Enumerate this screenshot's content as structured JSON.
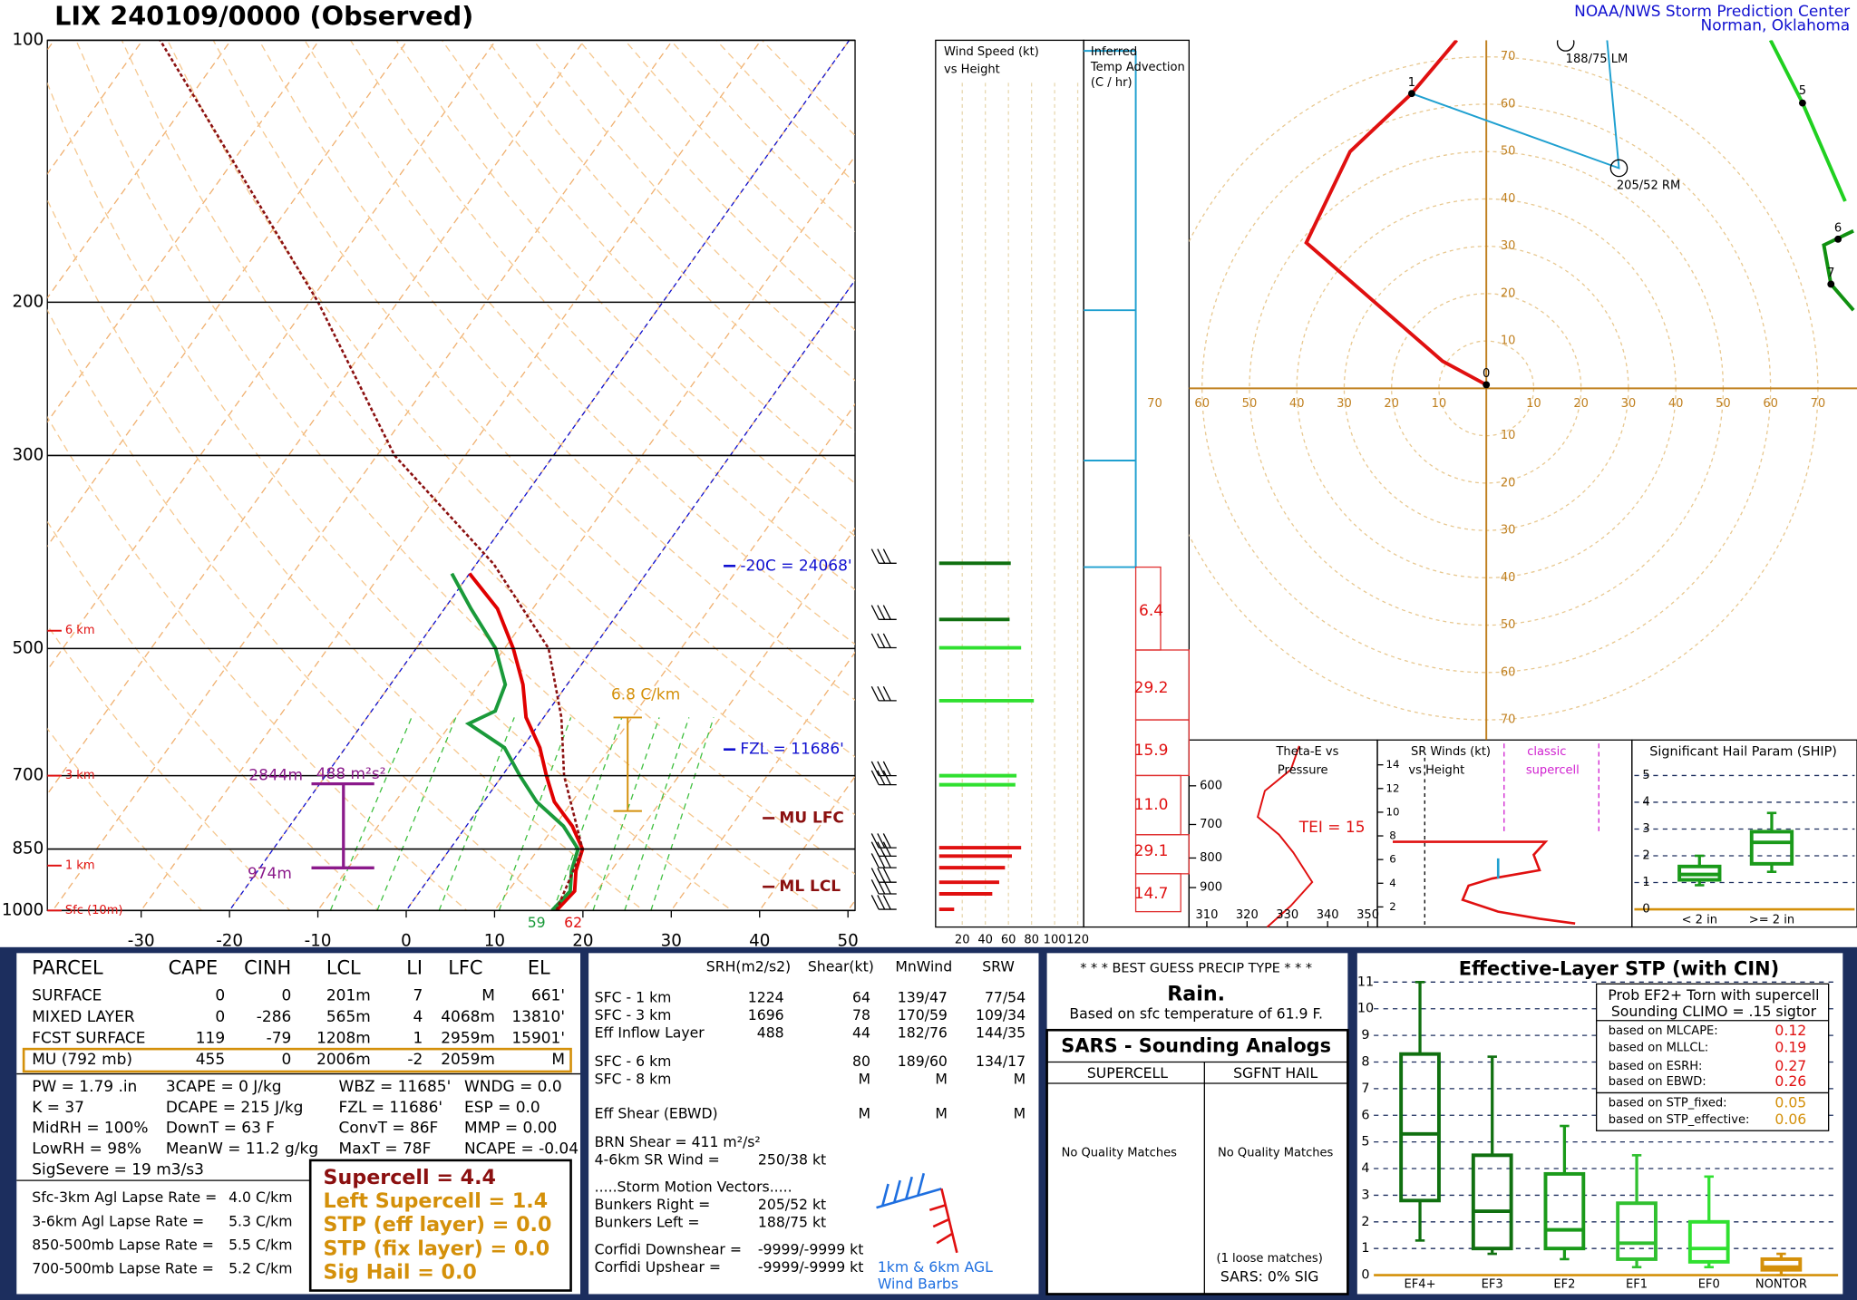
{
  "header": {
    "title": "LIX  240109/0000  (Observed)",
    "credit": [
      "NOAA/NWS Storm Prediction Center",
      "Norman, Oklahoma"
    ]
  },
  "skewt": {
    "pressure_ticks": [
      100,
      200,
      300,
      500,
      700,
      850,
      1000
    ],
    "temp_ticks": [
      -30,
      -20,
      -10,
      0,
      10,
      20,
      30,
      40,
      50
    ],
    "height_markers": [
      {
        "label": "6 km",
        "pressure": 477
      },
      {
        "label": "3 km",
        "pressure": 700
      },
      {
        "label": "1 km",
        "pressure": 888
      },
      {
        "label": "Sfc (10m)",
        "pressure": 1000
      }
    ],
    "levels": {
      "m20c": "-20C = 24068'",
      "fzl": "FZL = 11686'",
      "mu_lfc": "MU LFC",
      "ml_lcl": "ML LCL"
    },
    "lapse_rate": "6.8 C/km",
    "effective_inflow": {
      "top": "2844m",
      "bottom": "974m",
      "srh": "488 m²s²"
    },
    "surface": {
      "dewpoint": "59",
      "temperature": "62"
    },
    "traces": [
      {
        "name": "temperature",
        "color": "#e00000",
        "pressure": [
          1000,
          950,
          900,
          850,
          800,
          750,
          700,
          650,
          600,
          550,
          500,
          450,
          410
        ],
        "values": [
          17,
          17.5,
          16,
          15,
          12,
          8,
          5,
          2,
          -2,
          -5,
          -9,
          -14,
          -20
        ]
      },
      {
        "name": "dewpoint",
        "color": "#1a9a3a",
        "pressure": [
          1000,
          950,
          900,
          850,
          800,
          750,
          700,
          650,
          610,
          590,
          550,
          500,
          450,
          410
        ],
        "values": [
          16.5,
          17,
          15.5,
          14.5,
          11,
          6,
          2,
          -2,
          -8,
          -6,
          -7,
          -11,
          -17,
          -22
        ]
      },
      {
        "name": "parcel",
        "color": "#8b1010",
        "pressure": [
          1000,
          850,
          700,
          600,
          500,
          400,
          300,
          200,
          100
        ],
        "values": [
          17,
          15,
          7,
          2,
          -5,
          -18,
          -38,
          -59,
          -98
        ]
      }
    ]
  },
  "wind_profile": {
    "title": [
      "Wind Speed (kt)",
      "vs Height"
    ],
    "speed_ticks": [
      20,
      40,
      60,
      80,
      100,
      120
    ],
    "pressure": [
      399,
      463,
      499,
      574,
      700,
      717,
      847,
      866,
      893,
      928,
      957,
      997
    ],
    "speed": [
      62,
      61,
      71,
      82,
      67,
      66,
      71,
      63,
      57,
      52,
      46,
      13
    ]
  },
  "temp_advection": {
    "title": [
      "Inferred",
      "Temp Advection",
      "(C / hr)"
    ],
    "values": [
      "6.4",
      "29.2",
      "15.9",
      "11.0",
      "29.1",
      "14.7"
    ]
  },
  "hodograph": {
    "ticks": [
      10,
      20,
      30,
      40,
      50,
      60,
      70
    ],
    "points": [
      "0",
      "1",
      "5",
      "6",
      "7"
    ],
    "left_mover": "188/75 LM",
    "right_mover": "205/52 RM"
  },
  "theta_e": {
    "title": [
      "Theta-E vs",
      "Pressure"
    ],
    "pressure_ticks": [
      600,
      700,
      800,
      900
    ],
    "theta_ticks": [
      310,
      320,
      330,
      340,
      350
    ],
    "tei": "TEI = 15"
  },
  "sr_winds": {
    "title": [
      "SR Winds (kt)",
      "vs Height"
    ],
    "height_ticks": [
      2,
      4,
      6,
      8,
      10,
      12,
      14
    ],
    "legend": [
      "classic",
      "supercell"
    ]
  },
  "ship": {
    "title": "Significant Hail Param (SHIP)",
    "ticks": [
      0,
      1,
      2,
      3,
      4,
      5
    ],
    "boxes": [
      {
        "name": "< 2 in",
        "stats": [
          0.9,
          1.1,
          1.3,
          1.6,
          2.0
        ]
      },
      {
        "name": ">= 2 in",
        "stats": [
          1.4,
          1.7,
          2.5,
          2.9,
          3.6
        ]
      }
    ]
  },
  "parcel_table": {
    "header": [
      "PARCEL",
      "CAPE",
      "CINH",
      "LCL",
      "LI",
      "LFC",
      "EL"
    ],
    "rows": [
      [
        "SURFACE",
        "0",
        "0",
        "201m",
        "7",
        "M",
        "661'"
      ],
      [
        "MIXED LAYER",
        "0",
        "-286",
        "565m",
        "4",
        "4068m",
        "13810'"
      ],
      [
        "FCST SURFACE",
        "119",
        "-79",
        "1208m",
        "1",
        "2959m",
        "15901'"
      ],
      [
        "MU   (792 mb)",
        "455",
        "0",
        "2006m",
        "-2",
        "2059m",
        "M"
      ]
    ]
  },
  "indices": [
    [
      "PW = 1.79 .in",
      "3CAPE = 0 J/kg",
      "WBZ = 11685'",
      "WNDG = 0.0"
    ],
    [
      "K = 37",
      "DCAPE = 215 J/kg",
      "FZL = 11686'",
      "ESP = 0.0"
    ],
    [
      "MidRH = 100%",
      "DownT = 63 F",
      "ConvT = 86F",
      "MMP = 0.00"
    ],
    [
      "LowRH = 98%",
      "MeanW = 11.2 g/kg",
      "MaxT = 78F",
      "NCAPE = -0.04"
    ]
  ],
  "sig_severe": "SigSevere = 19 m3/s3",
  "lapse_rates": [
    [
      "Sfc-3km Agl Lapse Rate =",
      "4.0 C/km"
    ],
    [
      "3-6km Agl Lapse Rate =",
      "5.3 C/km"
    ],
    [
      "850-500mb Lapse Rate =",
      "5.5 C/km"
    ],
    [
      "700-500mb Lapse Rate =",
      "5.2 C/km"
    ]
  ],
  "composite": [
    "Supercell = 4.4",
    "Left Supercell = 1.4",
    "STP (eff layer) = 0.0",
    "STP (fix layer) = 0.0",
    "Sig Hail = 0.0"
  ],
  "kinematics": {
    "header": [
      "SRH(m2/s2)",
      "Shear(kt)",
      "MnWind",
      "SRW"
    ],
    "rows": [
      {
        "layer": "SFC - 1 km",
        "values": [
          "1224",
          "64",
          "139/47",
          "77/54"
        ]
      },
      {
        "layer": "SFC - 3 km",
        "values": [
          "1696",
          "78",
          "170/59",
          "109/34"
        ]
      },
      {
        "layer": "Eff Inflow Layer",
        "values": [
          "488",
          "44",
          "182/76",
          "144/35"
        ]
      },
      {
        "layer": "SFC - 6 km",
        "values": [
          "80",
          "189/60",
          "134/17"
        ]
      },
      {
        "layer": "SFC - 8 km",
        "values": [
          "M",
          "M",
          "M"
        ]
      },
      {
        "layer": "Eff Shear (EBWD)",
        "values": [
          "M",
          "M",
          "M"
        ]
      }
    ],
    "brn": "BRN Shear =  411 m²/s²",
    "sr_wind": [
      "4-6km SR Wind =",
      "250/38 kt"
    ],
    "motion_title": ".....Storm Motion Vectors.....",
    "motion": [
      [
        "Bunkers Right =",
        "205/52 kt"
      ],
      [
        "Bunkers Left =",
        "188/75 kt"
      ],
      [
        "Corfidi Downshear =",
        "-9999/-9999 kt"
      ],
      [
        "Corfidi Upshear =",
        "-9999/-9999 kt"
      ]
    ],
    "barb_caption": [
      "1km & 6km AGL",
      "Wind Barbs"
    ]
  },
  "precip": {
    "title": "* * * BEST GUESS PRECIP TYPE * * *",
    "type": "Rain.",
    "basis": "Based on sfc temperature of 61.9 F."
  },
  "sars": {
    "title": "SARS - Sounding Analogs",
    "columns": [
      "SUPERCELL",
      "SGFNT HAIL"
    ],
    "supercell": "No Quality Matches",
    "hail": "No Quality Matches",
    "loose": "(1 loose matches)",
    "summary": "SARS:  0% SIG"
  },
  "stp": {
    "title": "Effective-Layer STP (with CIN)",
    "ticks": [
      0,
      1,
      2,
      3,
      4,
      5,
      6,
      7,
      8,
      9,
      10,
      11
    ],
    "boxes": [
      {
        "name": "EF4+",
        "stats": [
          1.3,
          2.8,
          5.3,
          8.3,
          11
        ]
      },
      {
        "name": "EF3",
        "stats": [
          0.8,
          1.0,
          2.4,
          4.5,
          8.2
        ]
      },
      {
        "name": "EF2",
        "stats": [
          0.6,
          1.0,
          1.7,
          3.8,
          5.6
        ]
      },
      {
        "name": "EF1",
        "stats": [
          0.3,
          0.6,
          1.2,
          2.7,
          4.5
        ]
      },
      {
        "name": "EF0",
        "stats": [
          0.3,
          0.5,
          1.0,
          2.0,
          3.7
        ]
      },
      {
        "name": "NONTOR",
        "stats": [
          0,
          0.2,
          0.3,
          0.6,
          0.8
        ]
      }
    ],
    "prob_title": [
      "Prob EF2+ Torn with supercell",
      "Sounding CLIMO = .15 sigtor"
    ],
    "probs": [
      [
        "based on MLCAPE:",
        "0.12"
      ],
      [
        "based on MLLCL:",
        "0.19"
      ],
      [
        "based on ESRH:",
        "0.27"
      ],
      [
        "based on EBWD:",
        "0.26"
      ],
      [
        "based on STP_fixed:",
        "0.05"
      ],
      [
        "based on STP_effective:",
        "0.06"
      ]
    ]
  }
}
